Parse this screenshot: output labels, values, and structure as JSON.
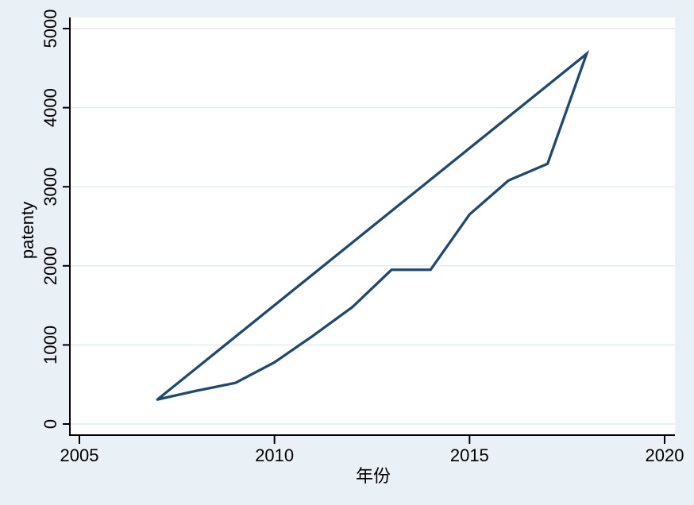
{
  "chart_data": {
    "type": "line",
    "title": "",
    "xlabel": "年份",
    "ylabel": "patenty",
    "xlim": [
      2005,
      2020
    ],
    "ylim": [
      0,
      5000
    ],
    "x_ticks": [
      2005,
      2010,
      2015,
      2020
    ],
    "y_ticks": [
      0,
      1000,
      2000,
      3000,
      4000,
      5000
    ],
    "grid": "horizontal-only",
    "legend_position": "none",
    "y_tick_label_rotation_deg": -90,
    "colors": {
      "figure_background": "#e9f0f6",
      "plot_background": "#ffffff",
      "grid": "#dfeaf2",
      "axis": "#000000",
      "tick_label": "#000000",
      "series_line": "#1d4a73"
    },
    "series": [
      {
        "name": "patenty",
        "color": "#1d4a73",
        "x": [
          2007,
          2008,
          2009,
          2010,
          2011,
          2012,
          2013,
          2014,
          2015,
          2016,
          2017,
          2018
        ],
        "values": [
          310,
          420,
          520,
          780,
          1120,
          1480,
          1950,
          1950,
          2650,
          3080,
          3290,
          4680
        ],
        "closes_back_to_start": true
      }
    ]
  }
}
